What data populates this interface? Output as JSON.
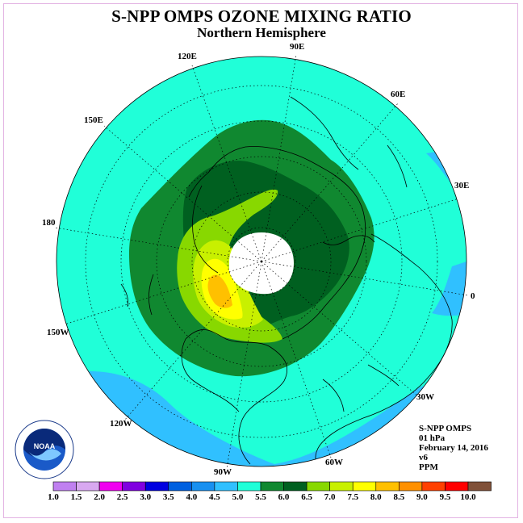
{
  "title": "S-NPP OMPS OZONE MIXING RATIO",
  "subtitle": "Northern Hemisphere",
  "longitude_labels": [
    "90E",
    "60E",
    "30E",
    "0",
    "30W",
    "60W",
    "90W",
    "120W",
    "150W",
    "180",
    "150E",
    "120E"
  ],
  "info": {
    "instrument": "S-NPP OMPS",
    "pressure": "01 hPa",
    "date": "February 14, 2016",
    "version": "v6",
    "units": "PPM"
  },
  "logo_text": "NOAA",
  "colorbar": {
    "labels": [
      "1.0",
      "1.5",
      "2.0",
      "2.5",
      "3.0",
      "3.5",
      "4.0",
      "4.5",
      "5.0",
      "5.5",
      "6.0",
      "6.5",
      "7.0",
      "7.5",
      "8.0",
      "8.5",
      "9.0",
      "9.5",
      "10.0"
    ],
    "colors": [
      "#c080f0",
      "#d8a8f0",
      "#f000f0",
      "#8000e0",
      "#0000e0",
      "#0060e0",
      "#1890f0",
      "#30c0ff",
      "#20ffd8",
      "#108830",
      "#006020",
      "#88d800",
      "#c8f000",
      "#ffff00",
      "#ffc000",
      "#ff9000",
      "#ff4000",
      "#ff0000",
      "#805038"
    ]
  },
  "colors": {
    "background": "#20ffd8",
    "low": "#30c0ff",
    "mid": "#108830",
    "high": "#006020",
    "green_light": "#88d800",
    "yellow": "#ffff00",
    "orange": "#ffc000"
  }
}
